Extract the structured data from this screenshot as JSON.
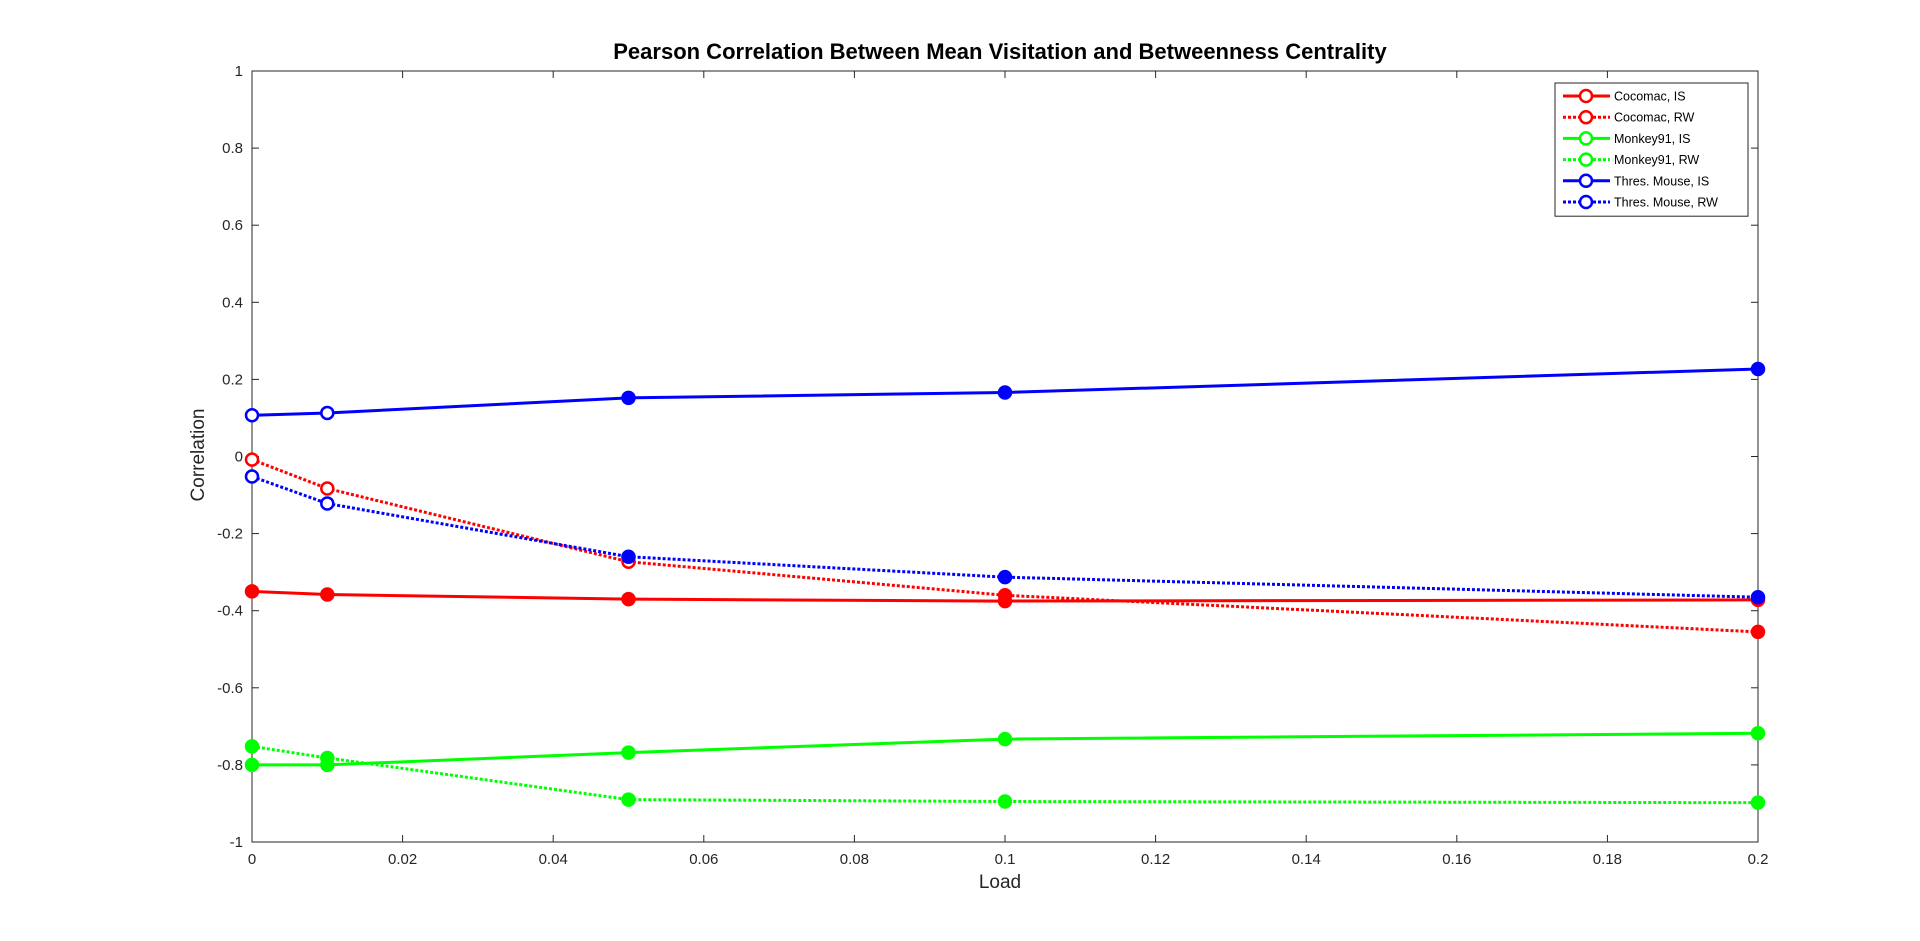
{
  "chart_data": {
    "type": "line",
    "title": "Pearson Correlation Between Mean Visitation and Betweenness Centrality",
    "xlabel": "Load",
    "ylabel": "Correlation",
    "xlim": [
      0,
      0.2
    ],
    "ylim": [
      -1,
      1
    ],
    "xticks": [
      0,
      0.02,
      0.04,
      0.06,
      0.08,
      0.1,
      0.12,
      0.14,
      0.16,
      0.18,
      0.2
    ],
    "xtick_labels": [
      "0",
      "0.02",
      "0.04",
      "0.06",
      "0.08",
      "0.1",
      "0.12",
      "0.14",
      "0.16",
      "0.18",
      "0.2"
    ],
    "yticks": [
      -1,
      -0.8,
      -0.6,
      -0.4,
      -0.2,
      0,
      0.2,
      0.4,
      0.6,
      0.8,
      1
    ],
    "ytick_labels": [
      "-1",
      "-0.8",
      "-0.6",
      "-0.4",
      "-0.2",
      "0",
      "0.2",
      "0.4",
      "0.6",
      "0.8",
      "1"
    ],
    "grid": false,
    "legend_position": "top-right",
    "x": [
      0,
      0.01,
      0.05,
      0.1,
      0.2
    ],
    "series": [
      {
        "name": "Cocomac, IS",
        "color": "#ff0000",
        "style": "solid",
        "values": [
          -0.35,
          -0.358,
          -0.37,
          -0.375,
          -0.372
        ],
        "filled": [
          true,
          true,
          true,
          true,
          true
        ]
      },
      {
        "name": "Cocomac, RW",
        "color": "#ff0000",
        "style": "dotted",
        "values": [
          -0.008,
          -0.083,
          -0.273,
          -0.36,
          -0.455
        ],
        "filled": [
          false,
          false,
          false,
          true,
          true
        ]
      },
      {
        "name": "Monkey91, IS",
        "color": "#00ff00",
        "style": "solid",
        "values": [
          -0.8,
          -0.8,
          -0.768,
          -0.733,
          -0.718
        ],
        "filled": [
          true,
          true,
          true,
          true,
          true
        ]
      },
      {
        "name": "Monkey91, RW",
        "color": "#00ff00",
        "style": "dotted",
        "values": [
          -0.752,
          -0.782,
          -0.89,
          -0.895,
          -0.898
        ],
        "filled": [
          true,
          true,
          true,
          true,
          true
        ]
      },
      {
        "name": "Thres. Mouse, IS",
        "color": "#0000ff",
        "style": "solid",
        "values": [
          0.107,
          0.113,
          0.152,
          0.166,
          0.227
        ],
        "filled": [
          false,
          false,
          true,
          true,
          true
        ]
      },
      {
        "name": "Thres. Mouse, RW",
        "color": "#0000ff",
        "style": "dotted",
        "values": [
          -0.052,
          -0.122,
          -0.26,
          -0.313,
          -0.365
        ],
        "filled": [
          false,
          false,
          true,
          true,
          true
        ]
      }
    ]
  }
}
